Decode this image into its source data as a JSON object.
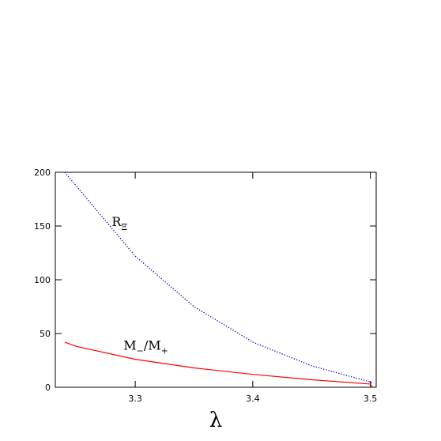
{
  "chart_data": {
    "type": "line",
    "x_label": "λ",
    "x": [
      3.24,
      3.25,
      3.3,
      3.35,
      3.4,
      3.45,
      3.5,
      3.502
    ],
    "series": [
      {
        "color": "#0000cc",
        "dash": true,
        "values": [
          200,
          187,
          122,
          75,
          42,
          20,
          5,
          3
        ]
      },
      {
        "color": "#ff0000",
        "dash": false,
        "values": [
          42,
          38,
          26,
          18,
          12,
          7,
          3,
          0
        ]
      }
    ],
    "annotations": [
      {
        "parts": [
          "R",
          "Ξ"
        ],
        "x": 3.28,
        "y": 150
      },
      {
        "parts": [
          "M",
          "−",
          "/M",
          "+"
        ],
        "x": 3.29,
        "y": 35
      }
    ],
    "xlim": [
      3.232,
      3.505
    ],
    "xticks": [
      3.3,
      3.4,
      3.5
    ],
    "ylim": [
      0,
      200
    ],
    "yticks": [
      0,
      50,
      100,
      150,
      200
    ]
  }
}
